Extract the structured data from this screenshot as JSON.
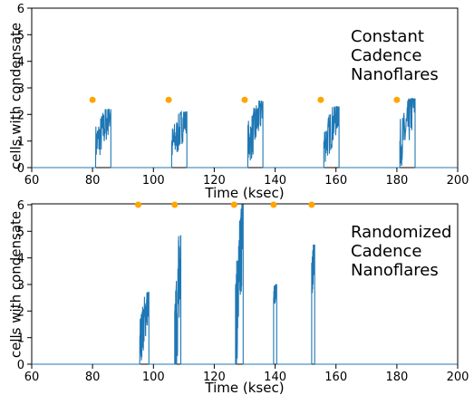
{
  "figure": {
    "ylabel": "cells with condensate"
  },
  "chart_data": [
    {
      "type": "line",
      "xlabel": "Time (ksec)",
      "ylabel": "cells with condensate",
      "xlim": [
        60,
        200
      ],
      "ylim": [
        0,
        6
      ],
      "xticks": [
        "60",
        "80",
        "100",
        "120",
        "140",
        "160",
        "180",
        "200"
      ],
      "yticks": [
        "0",
        "1",
        "2",
        "3",
        "4",
        "5",
        "6"
      ],
      "annotation": [
        "Constant",
        "Cadence",
        "Nanoflares"
      ],
      "series_color": "#1f77b4",
      "marker_color": "#ffa500",
      "markers": {
        "x": [
          80,
          105,
          130,
          155,
          180
        ],
        "y": [
          2.55,
          2.55,
          2.55,
          2.55,
          2.55
        ]
      },
      "bursts": [
        {
          "start": 81,
          "end": 86,
          "peak": 2.2,
          "base": 0.9
        },
        {
          "start": 106,
          "end": 111,
          "peak": 2.1,
          "base": 0.85
        },
        {
          "start": 131,
          "end": 136,
          "peak": 2.5,
          "base": 0.9
        },
        {
          "start": 156,
          "end": 161,
          "peak": 2.3,
          "base": 0.9
        },
        {
          "start": 181,
          "end": 186,
          "peak": 2.6,
          "base": 0.9
        }
      ]
    },
    {
      "type": "line",
      "xlabel": "Time (ksec)",
      "ylabel": "cells with condensate",
      "xlim": [
        60,
        200
      ],
      "ylim": [
        0,
        6
      ],
      "xticks": [
        "60",
        "80",
        "100",
        "120",
        "140",
        "160",
        "180",
        "200"
      ],
      "yticks": [
        "0",
        "1",
        "2",
        "3",
        "4",
        "5",
        "6"
      ],
      "annotation": [
        "Randomized",
        "Cadence",
        "Nanoflares"
      ],
      "series_color": "#1f77b4",
      "marker_color": "#ffa500",
      "markers": {
        "x": [
          95,
          107,
          126.5,
          139.5,
          152
        ],
        "y": [
          6.0,
          6.0,
          6.0,
          6.0,
          6.0
        ]
      },
      "bursts": [
        {
          "start": 95.5,
          "end": 98.5,
          "peak": 2.7,
          "base": 0.9
        },
        {
          "start": 107,
          "end": 109,
          "peak": 4.85,
          "base": 0.6
        },
        {
          "start": 127,
          "end": 129.5,
          "peak": 6.0,
          "base": 1.5
        },
        {
          "start": 139.5,
          "end": 140.5,
          "peak": 3.0,
          "base": 2.5
        },
        {
          "start": 152,
          "end": 153,
          "peak": 4.5,
          "base": 3.2
        }
      ]
    }
  ]
}
